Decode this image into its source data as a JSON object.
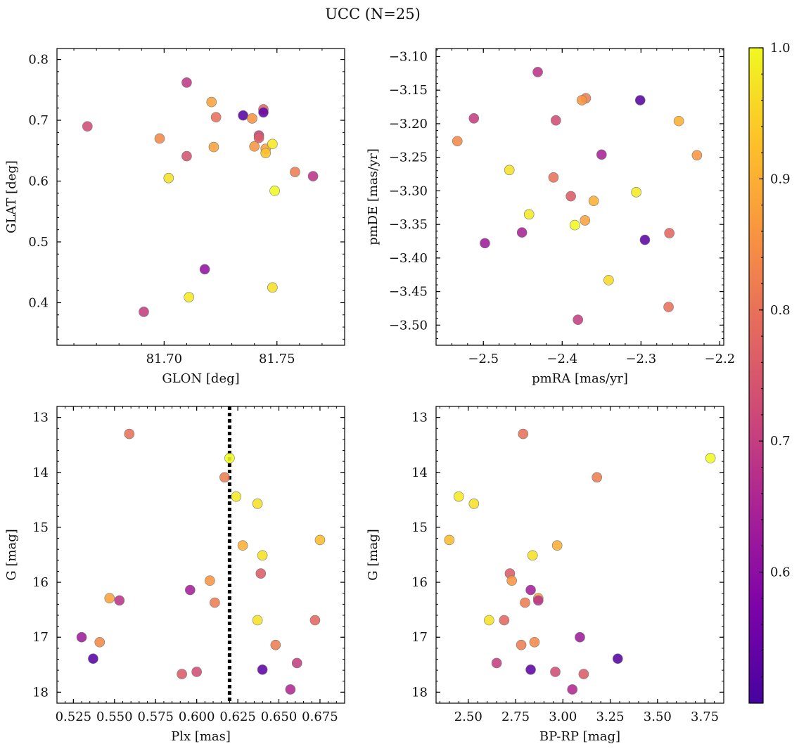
{
  "chart_data": {
    "type": "scatter",
    "title": "UCC (N=25)",
    "colorbar": {
      "min": 0.5,
      "max": 1.0,
      "ticks": [
        0.6,
        0.7,
        0.8,
        0.9,
        1.0
      ],
      "tick_labels": [
        "0.6",
        "0.7",
        "0.8",
        "0.9",
        "1.0"
      ],
      "colormap": "plasma"
    },
    "panels": [
      {
        "id": "glon-glat",
        "xlabel": "GLON [deg]",
        "ylabel": "GLAT [deg]",
        "xlim": [
          81.6525,
          81.78
        ],
        "ylim": [
          0.33,
          0.818
        ],
        "y_inverted": false,
        "xticks": [
          81.7,
          81.75
        ],
        "xtick_labels": [
          "81.70",
          "81.75"
        ],
        "yticks": [
          0.4,
          0.5,
          0.6,
          0.7,
          0.8
        ],
        "ytick_labels": [
          "0.4",
          "0.5",
          "0.6",
          "0.7",
          "0.8"
        ],
        "points": [
          {
            "x": 81.71,
            "y": 0.762,
            "c": 0.69
          },
          {
            "x": 81.721,
            "y": 0.73,
            "c": 0.88
          },
          {
            "x": 81.735,
            "y": 0.708,
            "c": 0.52
          },
          {
            "x": 81.744,
            "y": 0.718,
            "c": 0.78
          },
          {
            "x": 81.744,
            "y": 0.713,
            "c": 0.54
          },
          {
            "x": 81.723,
            "y": 0.705,
            "c": 0.8
          },
          {
            "x": 81.739,
            "y": 0.703,
            "c": 0.86
          },
          {
            "x": 81.742,
            "y": 0.675,
            "c": 0.7
          },
          {
            "x": 81.742,
            "y": 0.671,
            "c": 0.76
          },
          {
            "x": 81.666,
            "y": 0.69,
            "c": 0.73
          },
          {
            "x": 81.698,
            "y": 0.67,
            "c": 0.84
          },
          {
            "x": 81.74,
            "y": 0.657,
            "c": 0.86
          },
          {
            "x": 81.745,
            "y": 0.653,
            "c": 0.88
          },
          {
            "x": 81.722,
            "y": 0.656,
            "c": 0.88
          },
          {
            "x": 81.748,
            "y": 0.661,
            "c": 0.98
          },
          {
            "x": 81.745,
            "y": 0.646,
            "c": 0.93
          },
          {
            "x": 81.71,
            "y": 0.641,
            "c": 0.74
          },
          {
            "x": 81.758,
            "y": 0.615,
            "c": 0.82
          },
          {
            "x": 81.766,
            "y": 0.608,
            "c": 0.68
          },
          {
            "x": 81.702,
            "y": 0.605,
            "c": 0.97
          },
          {
            "x": 81.749,
            "y": 0.584,
            "c": 1.0
          },
          {
            "x": 81.718,
            "y": 0.455,
            "c": 0.61
          },
          {
            "x": 81.748,
            "y": 0.425,
            "c": 0.97
          },
          {
            "x": 81.711,
            "y": 0.409,
            "c": 0.98
          },
          {
            "x": 81.691,
            "y": 0.385,
            "c": 0.7
          }
        ]
      },
      {
        "id": "pm",
        "xlabel": "pmRA [mas/yr]",
        "ylabel": "pmDE [mas/yr]",
        "xlim": [
          -2.56,
          -2.195
        ],
        "ylim": [
          -3.53,
          -3.088
        ],
        "y_inverted": false,
        "xticks": [
          -2.5,
          -2.4,
          -2.3,
          -2.2
        ],
        "xtick_labels": [
          "−2.5",
          "−2.4",
          "−2.3",
          "−2.2"
        ],
        "yticks": [
          -3.5,
          -3.45,
          -3.4,
          -3.35,
          -3.3,
          -3.25,
          -3.2,
          -3.15,
          -3.1
        ],
        "ytick_labels": [
          "−3.50",
          "−3.45",
          "−3.40",
          "−3.35",
          "−3.30",
          "−3.25",
          "−3.20",
          "−3.15",
          "−3.10"
        ],
        "points": [
          {
            "x": -2.431,
            "y": -3.123,
            "c": 0.68
          },
          {
            "x": -2.37,
            "y": -3.162,
            "c": 0.82
          },
          {
            "x": -2.375,
            "y": -3.165,
            "c": 0.86
          },
          {
            "x": -2.301,
            "y": -3.165,
            "c": 0.52
          },
          {
            "x": -2.512,
            "y": -3.192,
            "c": 0.7
          },
          {
            "x": -2.408,
            "y": -3.195,
            "c": 0.73
          },
          {
            "x": -2.252,
            "y": -3.196,
            "c": 0.9
          },
          {
            "x": -2.533,
            "y": -3.226,
            "c": 0.84
          },
          {
            "x": -2.35,
            "y": -3.246,
            "c": 0.65
          },
          {
            "x": -2.229,
            "y": -3.247,
            "c": 0.86
          },
          {
            "x": -2.467,
            "y": -3.269,
            "c": 0.97
          },
          {
            "x": -2.411,
            "y": -3.28,
            "c": 0.8
          },
          {
            "x": -2.306,
            "y": -3.302,
            "c": 0.98
          },
          {
            "x": -2.389,
            "y": -3.308,
            "c": 0.76
          },
          {
            "x": -2.36,
            "y": -3.315,
            "c": 0.9
          },
          {
            "x": -2.442,
            "y": -3.335,
            "c": 0.98
          },
          {
            "x": -2.371,
            "y": -3.344,
            "c": 0.88
          },
          {
            "x": -2.384,
            "y": -3.351,
            "c": 1.0
          },
          {
            "x": -2.451,
            "y": -3.362,
            "c": 0.65
          },
          {
            "x": -2.264,
            "y": -3.363,
            "c": 0.78
          },
          {
            "x": -2.295,
            "y": -3.373,
            "c": 0.53
          },
          {
            "x": -2.498,
            "y": -3.378,
            "c": 0.63
          },
          {
            "x": -2.341,
            "y": -3.433,
            "c": 0.96
          },
          {
            "x": -2.265,
            "y": -3.473,
            "c": 0.8
          },
          {
            "x": -2.38,
            "y": -3.492,
            "c": 0.7
          }
        ]
      },
      {
        "id": "plx-g",
        "xlabel": "Plx [mas]",
        "ylabel": "G [mag]",
        "xlim": [
          0.515,
          0.69
        ],
        "ylim": [
          18.2,
          12.8
        ],
        "y_inverted": true,
        "xticks": [
          0.525,
          0.55,
          0.575,
          0.6,
          0.625,
          0.65,
          0.675
        ],
        "xtick_labels": [
          "0.525",
          "0.550",
          "0.575",
          "0.600",
          "0.625",
          "0.650",
          "0.675"
        ],
        "yticks": [
          13,
          14,
          15,
          16,
          17,
          18
        ],
        "ytick_labels": [
          "13",
          "14",
          "15",
          "16",
          "17",
          "18"
        ],
        "vline": {
          "x": 0.62,
          "style": "dotted"
        },
        "points": [
          {
            "x": 0.559,
            "y": 13.3,
            "c": 0.8
          },
          {
            "x": 0.62,
            "y": 13.74,
            "c": 1.0
          },
          {
            "x": 0.617,
            "y": 14.09,
            "c": 0.82
          },
          {
            "x": 0.624,
            "y": 14.44,
            "c": 0.98
          },
          {
            "x": 0.637,
            "y": 14.57,
            "c": 0.97
          },
          {
            "x": 0.675,
            "y": 15.23,
            "c": 0.92
          },
          {
            "x": 0.628,
            "y": 15.33,
            "c": 0.9
          },
          {
            "x": 0.64,
            "y": 15.51,
            "c": 0.97
          },
          {
            "x": 0.639,
            "y": 15.84,
            "c": 0.76
          },
          {
            "x": 0.608,
            "y": 15.97,
            "c": 0.86
          },
          {
            "x": 0.596,
            "y": 16.14,
            "c": 0.64
          },
          {
            "x": 0.547,
            "y": 16.29,
            "c": 0.88
          },
          {
            "x": 0.553,
            "y": 16.33,
            "c": 0.68
          },
          {
            "x": 0.611,
            "y": 16.37,
            "c": 0.82
          },
          {
            "x": 0.637,
            "y": 16.69,
            "c": 0.97
          },
          {
            "x": 0.672,
            "y": 16.69,
            "c": 0.78
          },
          {
            "x": 0.53,
            "y": 17.0,
            "c": 0.63
          },
          {
            "x": 0.541,
            "y": 17.09,
            "c": 0.84
          },
          {
            "x": 0.648,
            "y": 17.14,
            "c": 0.82
          },
          {
            "x": 0.537,
            "y": 17.39,
            "c": 0.52
          },
          {
            "x": 0.661,
            "y": 17.47,
            "c": 0.7
          },
          {
            "x": 0.64,
            "y": 17.59,
            "c": 0.53
          },
          {
            "x": 0.6,
            "y": 17.63,
            "c": 0.73
          },
          {
            "x": 0.591,
            "y": 17.67,
            "c": 0.76
          },
          {
            "x": 0.657,
            "y": 17.95,
            "c": 0.66
          }
        ]
      },
      {
        "id": "cmd",
        "xlabel": "BP-RP [mag]",
        "ylabel": "G [mag]",
        "xlim": [
          2.33,
          3.85
        ],
        "ylim": [
          18.2,
          12.8
        ],
        "y_inverted": true,
        "xticks": [
          2.5,
          2.75,
          3.0,
          3.25,
          3.5,
          3.75
        ],
        "xtick_labels": [
          "2.50",
          "2.75",
          "3.00",
          "3.25",
          "3.50",
          "3.75"
        ],
        "yticks": [
          13,
          14,
          15,
          16,
          17,
          18
        ],
        "ytick_labels": [
          "13",
          "14",
          "15",
          "16",
          "17",
          "18"
        ],
        "points": [
          {
            "x": 2.79,
            "y": 13.3,
            "c": 0.8
          },
          {
            "x": 3.78,
            "y": 13.74,
            "c": 1.0
          },
          {
            "x": 3.18,
            "y": 14.09,
            "c": 0.82
          },
          {
            "x": 2.45,
            "y": 14.44,
            "c": 0.98
          },
          {
            "x": 2.53,
            "y": 14.57,
            "c": 0.97
          },
          {
            "x": 2.4,
            "y": 15.23,
            "c": 0.92
          },
          {
            "x": 2.97,
            "y": 15.33,
            "c": 0.9
          },
          {
            "x": 2.84,
            "y": 15.51,
            "c": 0.97
          },
          {
            "x": 2.72,
            "y": 15.84,
            "c": 0.76
          },
          {
            "x": 2.73,
            "y": 15.97,
            "c": 0.86
          },
          {
            "x": 2.83,
            "y": 16.14,
            "c": 0.64
          },
          {
            "x": 2.87,
            "y": 16.29,
            "c": 0.88
          },
          {
            "x": 2.87,
            "y": 16.33,
            "c": 0.68
          },
          {
            "x": 2.8,
            "y": 16.37,
            "c": 0.82
          },
          {
            "x": 2.61,
            "y": 16.69,
            "c": 0.97
          },
          {
            "x": 2.69,
            "y": 16.69,
            "c": 0.78
          },
          {
            "x": 3.09,
            "y": 17.0,
            "c": 0.63
          },
          {
            "x": 2.85,
            "y": 17.09,
            "c": 0.84
          },
          {
            "x": 2.78,
            "y": 17.14,
            "c": 0.82
          },
          {
            "x": 3.29,
            "y": 17.39,
            "c": 0.52
          },
          {
            "x": 2.65,
            "y": 17.47,
            "c": 0.7
          },
          {
            "x": 2.83,
            "y": 17.59,
            "c": 0.53
          },
          {
            "x": 2.96,
            "y": 17.63,
            "c": 0.73
          },
          {
            "x": 3.11,
            "y": 17.67,
            "c": 0.76
          },
          {
            "x": 3.05,
            "y": 17.95,
            "c": 0.66
          }
        ]
      }
    ]
  }
}
